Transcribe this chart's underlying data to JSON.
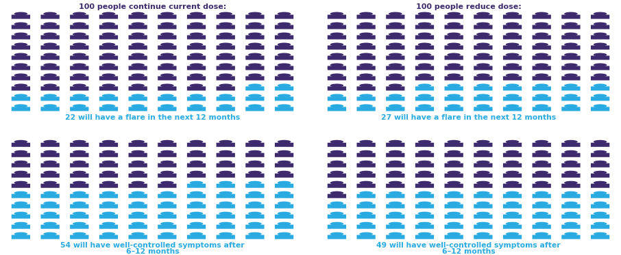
{
  "panels": [
    {
      "title": "100 people continue current dose:",
      "blue_count": 22,
      "label_number": "22",
      "label_line1": " will have a flare in the next 12 months",
      "label_line2": null,
      "row": 0,
      "col": 0
    },
    {
      "title": "100 people reduce dose:",
      "blue_count": 27,
      "label_number": "27",
      "label_line1": " will have a flare in the next 12 months",
      "label_line2": null,
      "row": 0,
      "col": 1
    },
    {
      "title": null,
      "blue_count": 54,
      "label_number": "54",
      "label_line1": " will have well-controlled symptoms after",
      "label_line2": "6–12 months",
      "row": 1,
      "col": 0
    },
    {
      "title": null,
      "blue_count": 49,
      "label_number": "49",
      "label_line1": " will have well-controlled symptoms after",
      "label_line2": "6–12 months",
      "row": 1,
      "col": 1
    }
  ],
  "dark_purple": "#3d2b6e",
  "light_blue": "#29abe2",
  "bg_color": "#ffffff",
  "cols": 10,
  "rows": 10
}
